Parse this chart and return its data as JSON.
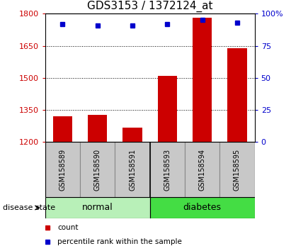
{
  "title": "GDS3153 / 1372124_at",
  "samples": [
    "GSM158589",
    "GSM158590",
    "GSM158591",
    "GSM158593",
    "GSM158594",
    "GSM158595"
  ],
  "counts": [
    1320,
    1325,
    1265,
    1510,
    1780,
    1640
  ],
  "percentiles": [
    92,
    91,
    91,
    92,
    95,
    93
  ],
  "ylim_left": [
    1200,
    1800
  ],
  "ylim_right": [
    0,
    100
  ],
  "yticks_left": [
    1200,
    1350,
    1500,
    1650,
    1800
  ],
  "yticks_right": [
    0,
    25,
    50,
    75,
    100
  ],
  "ytick_labels_right": [
    "0",
    "25",
    "50",
    "75",
    "100%"
  ],
  "bar_color": "#CC0000",
  "marker_color": "#0000CC",
  "normal_color": "#B8F0B8",
  "diabetes_color": "#44DD44",
  "gray_color": "#C8C8C8",
  "title_fontsize": 11,
  "tick_fontsize": 8,
  "sample_fontsize": 7,
  "group_fontsize": 9,
  "legend_fontsize": 7.5
}
